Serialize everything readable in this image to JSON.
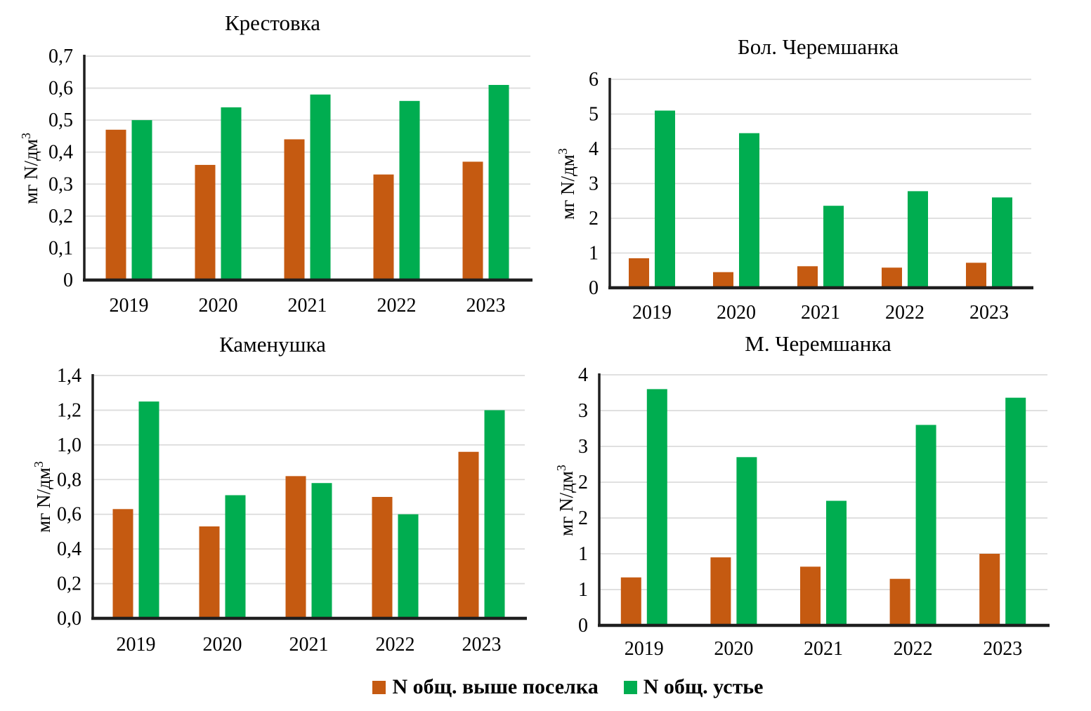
{
  "figure": {
    "background": "#ffffff",
    "colors": {
      "series_upstream": "#C55A11",
      "series_mouth": "#00AD50",
      "gridline": "#DCDCDC",
      "axis": "#1f1f1f",
      "text": "#000000"
    }
  },
  "legend": {
    "items": [
      {
        "label": "N общ. выше поселка",
        "color": "#C55A11"
      },
      {
        "label": "N общ. устье",
        "color": "#00AD50"
      }
    ]
  },
  "chart_data": [
    {
      "type": "bar",
      "title": "Крестовка",
      "ylabel_prefix": "мг N/дм",
      "ylabel_sup": "3",
      "xlabel": "",
      "categories": [
        "2019",
        "2020",
        "2021",
        "2022",
        "2023"
      ],
      "y_ticks": [
        "0",
        "0,1",
        "0,2",
        "0,3",
        "0,4",
        "0,5",
        "0,6",
        "0,7"
      ],
      "ylim": [
        0,
        0.7
      ],
      "grid": true,
      "series": [
        {
          "name": "N общ. выше поселка",
          "color": "#C55A11",
          "values": [
            0.47,
            0.36,
            0.44,
            0.33,
            0.37
          ]
        },
        {
          "name": "N общ. устье",
          "color": "#00AD50",
          "values": [
            0.5,
            0.54,
            0.58,
            0.56,
            0.61
          ]
        }
      ]
    },
    {
      "type": "bar",
      "title": "Бол. Черемшанка",
      "ylabel_prefix": "мг N/дм",
      "ylabel_sup": "3",
      "xlabel": "",
      "categories": [
        "2019",
        "2020",
        "2021",
        "2022",
        "2023"
      ],
      "y_ticks": [
        "0",
        "1",
        "2",
        "3",
        "4",
        "5",
        "6"
      ],
      "ylim": [
        0,
        6
      ],
      "grid": true,
      "series": [
        {
          "name": "N общ. выше поселка",
          "color": "#C55A11",
          "values": [
            0.85,
            0.45,
            0.62,
            0.58,
            0.72
          ]
        },
        {
          "name": "N общ. устье",
          "color": "#00AD50",
          "values": [
            5.1,
            4.45,
            2.36,
            2.78,
            2.6
          ]
        }
      ]
    },
    {
      "type": "bar",
      "title": "Каменушка",
      "ylabel_prefix": "мг N/дм",
      "ylabel_sup": "3",
      "xlabel": "",
      "categories": [
        "2019",
        "2020",
        "2021",
        "2022",
        "2023"
      ],
      "y_ticks": [
        "0,0",
        "0,2",
        "0,4",
        "0,6",
        "0,8",
        "1,0",
        "1,2",
        "1,4"
      ],
      "ylim": [
        0,
        1.4
      ],
      "grid": true,
      "series": [
        {
          "name": "N общ. выше поселка",
          "color": "#C55A11",
          "values": [
            0.63,
            0.53,
            0.82,
            0.7,
            0.96
          ]
        },
        {
          "name": "N общ. устье",
          "color": "#00AD50",
          "values": [
            1.25,
            0.71,
            0.78,
            0.6,
            1.2
          ]
        }
      ]
    },
    {
      "type": "bar",
      "title": "М. Черемшанка",
      "ylabel_prefix": "мг N/дм",
      "ylabel_sup": "3",
      "xlabel": "",
      "categories": [
        "2019",
        "2020",
        "2021",
        "2022",
        "2023"
      ],
      "y_ticks": [
        "0",
        "1",
        "1",
        "2",
        "2",
        "3",
        "3",
        "4"
      ],
      "ylim": [
        0,
        3.5
      ],
      "tick_step": 0.5,
      "grid": true,
      "series": [
        {
          "name": "N общ. выше поселка",
          "color": "#C55A11",
          "values": [
            0.67,
            0.95,
            0.82,
            0.65,
            1.0
          ]
        },
        {
          "name": "N общ. устье",
          "color": "#00AD50",
          "values": [
            3.3,
            2.35,
            1.74,
            2.8,
            3.18
          ]
        }
      ]
    }
  ]
}
